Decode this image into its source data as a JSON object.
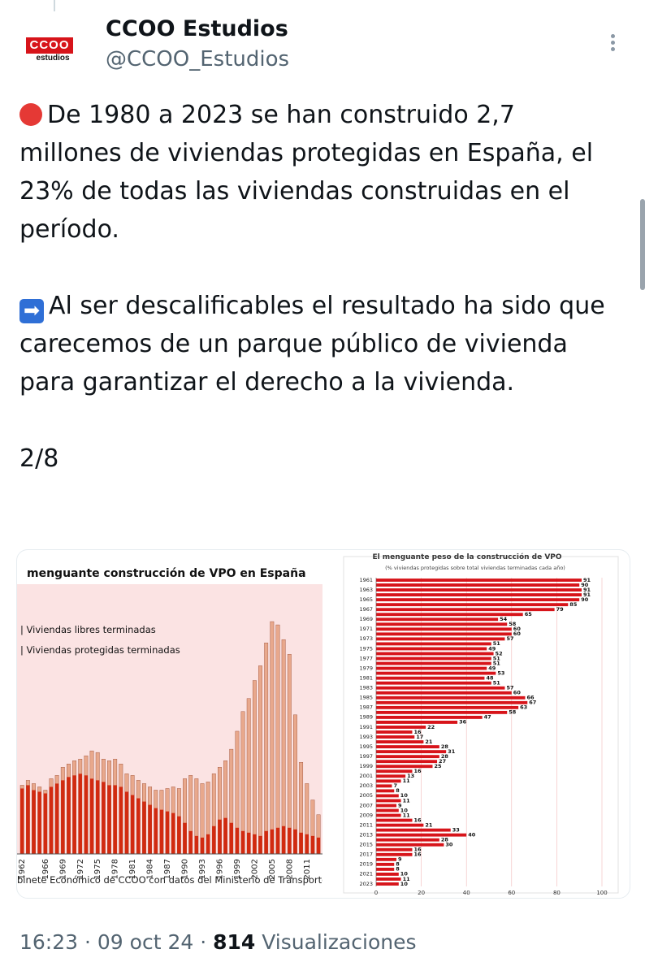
{
  "account": {
    "name": "CCOO Estudios",
    "handle": "@CCOO_Estudios",
    "logo_text": "CCOO",
    "logo_sub": "estudios"
  },
  "tweet": {
    "paragraph1": "De 1980 a 2023 se han construido 2,7 millones de viviendas protegidas en España, el 23% de todas las viviendas construidas en el período.",
    "paragraph2": "Al ser descalificables el resultado ha sido que carecemos de un parque público de vivienda para garantizar el derecho a la vivienda.",
    "thread_position": "2/8",
    "arrow_glyph": "➡"
  },
  "footer": {
    "time": "16:23",
    "sep1": " · ",
    "date": "09 oct 24",
    "sep2": " · ",
    "views": "814",
    "views_label": " Visualizaciones"
  },
  "colors": {
    "accent_red": "#d7141a",
    "bar_protected": "#d22a10",
    "bar_free": "#e8a88c",
    "chart_bg": "#fbe3e3"
  },
  "chart_data": [
    {
      "type": "bar",
      "title": "menguante construcción de VPO en España",
      "legend": [
        "Viviendas libres terminadas",
        "Viviendas protegidas terminadas"
      ],
      "source": "binete Económico de CCOO con datos del Ministerio de Transporte c",
      "x_tick_labels": [
        "1962",
        "1966",
        "1969",
        "1972",
        "1975",
        "1978",
        "1981",
        "1984",
        "1987",
        "1990",
        "1993",
        "1996",
        "1999",
        "2002",
        "2005",
        "2008",
        "2011"
      ],
      "years": [
        1962,
        1963,
        1964,
        1965,
        1966,
        1967,
        1968,
        1969,
        1970,
        1971,
        1972,
        1973,
        1974,
        1975,
        1976,
        1977,
        1978,
        1979,
        1980,
        1981,
        1982,
        1983,
        1984,
        1985,
        1986,
        1987,
        1988,
        1989,
        1990,
        1991,
        1992,
        1993,
        1994,
        1995,
        1996,
        1997,
        1998,
        1999,
        2000,
        2001,
        2002,
        2003,
        2004,
        2005,
        2006,
        2007,
        2008,
        2009,
        2010,
        2011,
        2012,
        2013
      ],
      "series": [
        {
          "name": "Viviendas libres terminadas",
          "values": [
            210,
            225,
            215,
            205,
            195,
            230,
            240,
            265,
            275,
            285,
            290,
            300,
            315,
            310,
            290,
            285,
            290,
            275,
            245,
            240,
            225,
            215,
            205,
            195,
            195,
            200,
            205,
            200,
            230,
            240,
            230,
            215,
            220,
            245,
            265,
            285,
            320,
            375,
            435,
            475,
            530,
            575,
            645,
            710,
            700,
            655,
            610,
            425,
            280,
            215,
            165,
            120
          ]
        },
        {
          "name": "Viviendas protegidas terminadas",
          "values": [
            200,
            210,
            195,
            190,
            185,
            205,
            215,
            225,
            235,
            240,
            245,
            240,
            230,
            225,
            220,
            210,
            210,
            205,
            190,
            180,
            170,
            160,
            150,
            140,
            135,
            130,
            125,
            115,
            95,
            70,
            55,
            50,
            60,
            85,
            105,
            110,
            95,
            80,
            70,
            65,
            60,
            55,
            70,
            75,
            80,
            85,
            80,
            75,
            65,
            60,
            55,
            50
          ]
        }
      ],
      "ylim": [
        0,
        800
      ]
    },
    {
      "type": "bar",
      "title": "El menguante peso de la construcción de VPO",
      "subtitle": "(% viviendas protegidas sobre total viviendas terminadas cada año)",
      "orientation": "horizontal",
      "categories": [
        1961,
        1962,
        1963,
        1964,
        1965,
        1966,
        1967,
        1968,
        1969,
        1970,
        1971,
        1972,
        1973,
        1974,
        1975,
        1976,
        1977,
        1978,
        1979,
        1980,
        1981,
        1982,
        1983,
        1984,
        1985,
        1986,
        1987,
        1988,
        1989,
        1990,
        1991,
        1992,
        1993,
        1994,
        1995,
        1996,
        1997,
        1998,
        1999,
        2000,
        2001,
        2002,
        2003,
        2004,
        2005,
        2006,
        2007,
        2008,
        2009,
        2010,
        2011,
        2012,
        2013,
        2014,
        2015,
        2016,
        2017,
        2018,
        2019,
        2020,
        2021,
        2022,
        2023
      ],
      "values": [
        91,
        90,
        91,
        91,
        90,
        85,
        79,
        65,
        54,
        58,
        60,
        60,
        57,
        51,
        49,
        52,
        51,
        51,
        49,
        53,
        48,
        51,
        57,
        60,
        66,
        67,
        63,
        58,
        47,
        36,
        22,
        16,
        17,
        21,
        28,
        31,
        28,
        27,
        25,
        16,
        13,
        11,
        7,
        8,
        10,
        11,
        9,
        10,
        11,
        16,
        21,
        33,
        40,
        28,
        30,
        16,
        16,
        9,
        8,
        8,
        10,
        11,
        10
      ],
      "year_labels": [
        "1961",
        "1963",
        "1965",
        "1967",
        "1969",
        "1971",
        "1973",
        "1975",
        "1977",
        "1979",
        "1981",
        "1983",
        "1985",
        "1987",
        "1989",
        "1991",
        "1993",
        "1995",
        "1997",
        "1999",
        "2001",
        "2003",
        "2005",
        "2007",
        "2009",
        "2011",
        "2013",
        "2015",
        "2017",
        "2019",
        "2021",
        "2023"
      ],
      "x_ticks": [
        "0",
        "20",
        "40",
        "60",
        "80",
        "100"
      ],
      "xlim": [
        0,
        100
      ]
    }
  ]
}
